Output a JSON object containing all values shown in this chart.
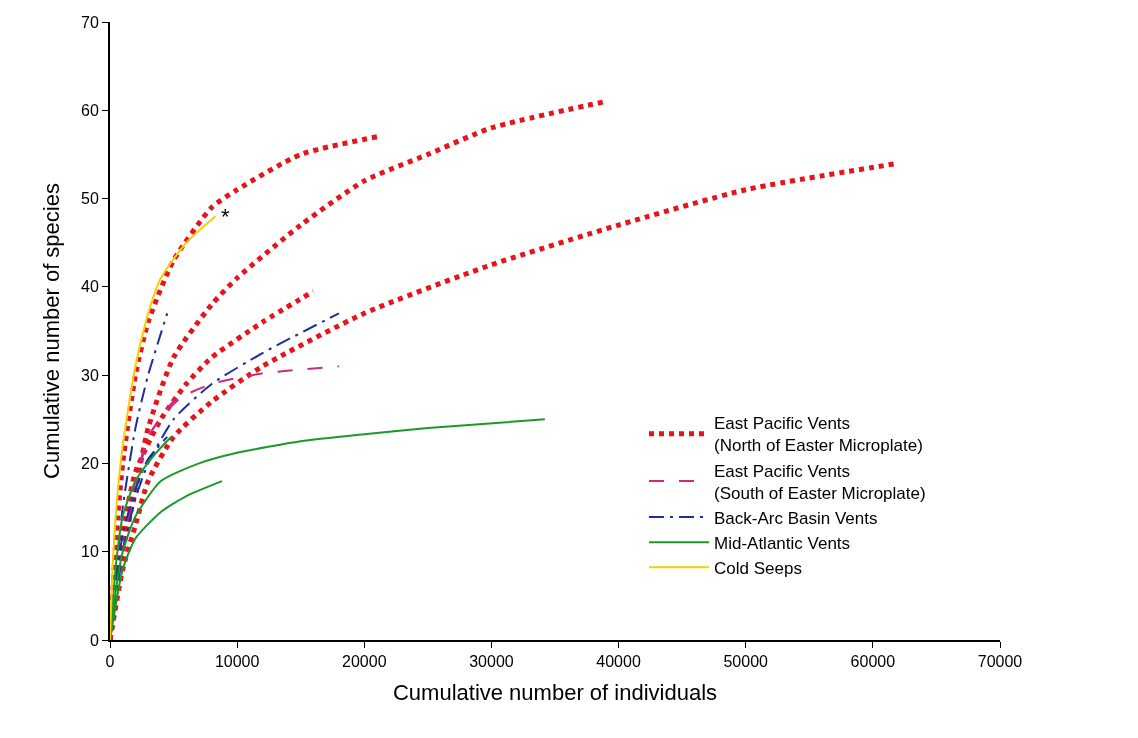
{
  "chart_data": {
    "type": "line",
    "xlabel": "Cumulative number of individuals",
    "ylabel": "Cumulative number of species",
    "xlim": [
      0,
      70000
    ],
    "xticks": [
      0,
      10000,
      20000,
      30000,
      40000,
      50000,
      60000,
      70000
    ],
    "ylim": [
      0,
      70
    ],
    "yticks": [
      0,
      10,
      20,
      30,
      40,
      50,
      60,
      70
    ],
    "legend": "bottom right",
    "marker": "none",
    "annotations": [
      {
        "text": "*",
        "x": 8300,
        "y": 48
      }
    ],
    "series": [
      {
        "name": "East Pacific Vents (North of Easter Microplate)",
        "color": "#e8141c",
        "line_style": "dotted",
        "x": [
          0,
          500,
          1000,
          2000,
          3000,
          5000,
          8000,
          10000,
          15000,
          21000
        ],
        "values": [
          0,
          12,
          20,
          30,
          36,
          43,
          49,
          51,
          55,
          57
        ]
      },
      {
        "color": "#e8141c",
        "line_style": "dotted",
        "x": [
          0,
          1000,
          2000,
          3000,
          5000,
          8000,
          10000,
          15000,
          20000,
          25000,
          30000,
          39000
        ],
        "values": [
          0,
          10,
          17,
          24,
          32,
          38,
          41,
          47,
          52,
          55,
          58,
          61
        ]
      },
      {
        "color": "#e8141c",
        "line_style": "dotted",
        "x": [
          0,
          1000,
          2000,
          4000,
          6000,
          8000,
          12000,
          16000
        ],
        "values": [
          0,
          12,
          19,
          25,
          29,
          32,
          36,
          39.5
        ]
      },
      {
        "color": "#e8141c",
        "line_style": "dotted",
        "x": [
          0,
          1000,
          2000,
          3000,
          5000,
          8000,
          12000,
          20000,
          30000,
          40000,
          50000,
          62000
        ],
        "values": [
          0,
          8,
          13,
          18,
          23,
          27,
          31,
          37,
          42.5,
          47,
          51,
          54
        ]
      },
      {
        "name": "East Pacific Vents (South of Easter Microplate)",
        "color": "#d0287a",
        "line_style": "dashed",
        "x": [
          0,
          1000,
          2000,
          3000,
          5000,
          8000,
          12000,
          18000
        ],
        "values": [
          0,
          10,
          18,
          23,
          27,
          29,
          30.2,
          31
        ]
      },
      {
        "color": "#d0287a",
        "line_style": "dashed",
        "x": [
          0,
          1000,
          2000,
          3000,
          4500,
          6000
        ],
        "values": [
          0,
          10,
          17,
          23,
          26,
          28
        ]
      },
      {
        "name": "Back-Arc Basin Vents",
        "color": "#1a2fa0",
        "line_style": "dashdot",
        "x": [
          0,
          500,
          1000,
          2000,
          3000,
          4500
        ],
        "values": [
          0,
          8,
          15,
          24,
          30,
          37
        ]
      },
      {
        "color": "#1a2fa0",
        "line_style": "dashdot",
        "x": [
          0,
          1000,
          2000,
          3000,
          5000,
          8000,
          12000,
          18000
        ],
        "values": [
          0,
          10,
          16,
          20,
          25,
          29,
          32.5,
          37
        ]
      },
      {
        "color": "#1a2fa0",
        "line_style": "dashdot",
        "x": [
          0,
          1000,
          2000,
          3000,
          4500
        ],
        "values": [
          0,
          12,
          17,
          20.5,
          23
        ]
      },
      {
        "name": "Mid-Atlantic Vents",
        "color": "#1a9a2a",
        "line_style": "solid",
        "x": [
          0,
          500,
          1000,
          2000,
          4000,
          7000,
          10000,
          15000,
          20000,
          25000,
          34200
        ],
        "values": [
          0,
          6,
          10,
          14,
          18,
          20,
          21.2,
          22.5,
          23.3,
          24,
          25
        ]
      },
      {
        "color": "#1a9a2a",
        "line_style": "solid",
        "x": [
          0,
          1000,
          2000,
          4000,
          6000,
          8800
        ],
        "values": [
          0,
          8,
          11.5,
          14.5,
          16.3,
          18
        ]
      },
      {
        "color": "#1a9a2a",
        "line_style": "solid",
        "x": [
          0,
          500,
          1000,
          2000,
          3500,
          4800
        ],
        "values": [
          0,
          9,
          14,
          18,
          21,
          23
        ]
      },
      {
        "name": "Cold Seeps",
        "color": "#f5d000",
        "line_style": "solid",
        "x": [
          0,
          200,
          500,
          1000,
          2000,
          3000,
          4000,
          6000,
          8300
        ],
        "values": [
          0,
          8,
          15,
          22,
          31,
          37,
          41,
          45,
          48
        ]
      }
    ]
  }
}
